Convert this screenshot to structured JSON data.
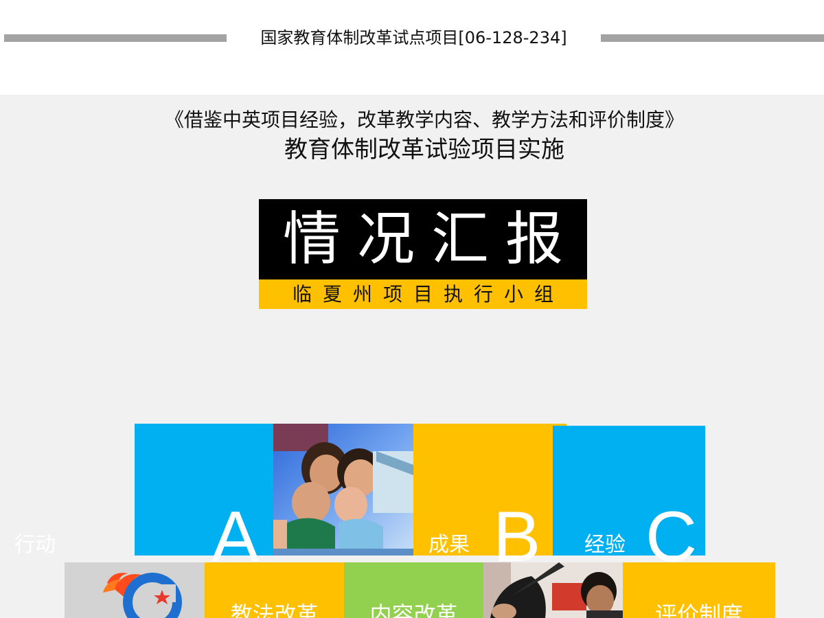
{
  "header": {
    "project_code": "国家教育体制改革试点项目[06-128-234]"
  },
  "cover": {
    "subtitle_line1": "《借鉴中英项目经验，改革教学内容、教学方法和评价制度》",
    "subtitle_line2": "教育体制改革试验项目实施",
    "main_title": "情况汇报",
    "organization": "临夏州项目执行小组"
  },
  "tiles_row1": [
    {
      "label": "行动",
      "letter": "A",
      "color": "#00b0f0"
    },
    {
      "label": "成果",
      "letter": "B",
      "color": "#ffc000"
    },
    {
      "label": "经验",
      "letter": "C",
      "color": "#00b0f0"
    }
  ],
  "tiles_row2": [
    {
      "label": "教法改革",
      "color": "#ffc000"
    },
    {
      "label": "内容改革",
      "color": "#92d050"
    },
    {
      "label": "评价制度",
      "color": "#ffc000"
    }
  ],
  "icons": {
    "logo": "flaming-c-logo-icon"
  }
}
